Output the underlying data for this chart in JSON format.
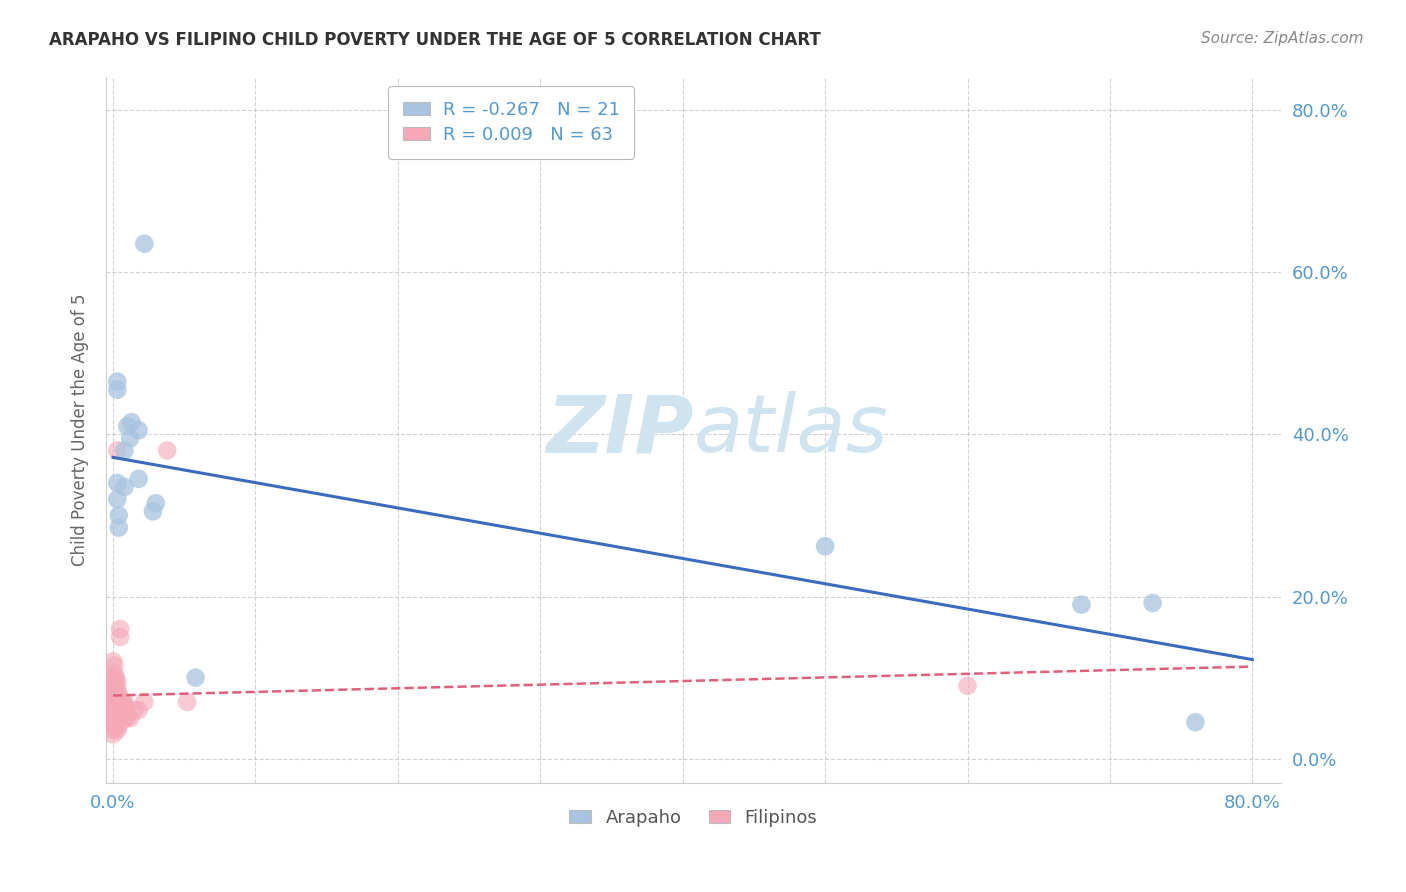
{
  "title": "ARAPAHO VS FILIPINO CHILD POVERTY UNDER THE AGE OF 5 CORRELATION CHART",
  "source": "Source: ZipAtlas.com",
  "ylabel": "Child Poverty Under the Age of 5",
  "ytick_values": [
    0.0,
    0.2,
    0.4,
    0.6,
    0.8
  ],
  "xtick_values": [
    0.0,
    0.1,
    0.2,
    0.3,
    0.4,
    0.5,
    0.6,
    0.7,
    0.8
  ],
  "xlim": [
    -0.005,
    0.82
  ],
  "ylim": [
    -0.03,
    0.84
  ],
  "legend_arapaho_R": "-0.267",
  "legend_arapaho_N": "21",
  "legend_filipino_R": "0.009",
  "legend_filipino_N": "63",
  "arapaho_color": "#A8C4E0",
  "filipino_color": "#F4A8B8",
  "arapaho_line_color": "#3A6BBF",
  "filipino_line_color": "#E0607A",
  "tick_color": "#5599CC",
  "title_color": "#333333",
  "source_color": "#888888",
  "watermark_color": "#D0E4F0",
  "background_color": "#FFFFFF",
  "arapaho_points": [
    [
      0.003,
      0.34
    ],
    [
      0.003,
      0.32
    ],
    [
      0.003,
      0.455
    ],
    [
      0.003,
      0.465
    ],
    [
      0.004,
      0.3
    ],
    [
      0.004,
      0.285
    ],
    [
      0.008,
      0.38
    ],
    [
      0.008,
      0.335
    ],
    [
      0.01,
      0.41
    ],
    [
      0.012,
      0.395
    ],
    [
      0.013,
      0.415
    ],
    [
      0.018,
      0.405
    ],
    [
      0.018,
      0.345
    ],
    [
      0.022,
      0.635
    ],
    [
      0.028,
      0.305
    ],
    [
      0.03,
      0.315
    ],
    [
      0.058,
      0.1
    ],
    [
      0.5,
      0.262
    ],
    [
      0.68,
      0.19
    ],
    [
      0.73,
      0.192
    ],
    [
      0.76,
      0.045
    ]
  ],
  "filipino_points": [
    [
      0.0,
      0.12
    ],
    [
      0.0,
      0.1
    ],
    [
      0.0,
      0.09
    ],
    [
      0.0,
      0.08
    ],
    [
      0.0,
      0.07
    ],
    [
      0.0,
      0.06
    ],
    [
      0.0,
      0.055
    ],
    [
      0.0,
      0.05
    ],
    [
      0.0,
      0.045
    ],
    [
      0.0,
      0.04
    ],
    [
      0.0,
      0.035
    ],
    [
      0.0,
      0.03
    ],
    [
      0.001,
      0.075
    ],
    [
      0.001,
      0.065
    ],
    [
      0.001,
      0.055
    ],
    [
      0.001,
      0.05
    ],
    [
      0.001,
      0.085
    ],
    [
      0.001,
      0.095
    ],
    [
      0.001,
      0.105
    ],
    [
      0.001,
      0.115
    ],
    [
      0.002,
      0.07
    ],
    [
      0.002,
      0.08
    ],
    [
      0.002,
      0.06
    ],
    [
      0.002,
      0.05
    ],
    [
      0.002,
      0.04
    ],
    [
      0.002,
      0.09
    ],
    [
      0.002,
      0.1
    ],
    [
      0.002,
      0.055
    ],
    [
      0.002,
      0.045
    ],
    [
      0.003,
      0.075
    ],
    [
      0.003,
      0.065
    ],
    [
      0.003,
      0.055
    ],
    [
      0.003,
      0.085
    ],
    [
      0.003,
      0.035
    ],
    [
      0.003,
      0.095
    ],
    [
      0.003,
      0.38
    ],
    [
      0.004,
      0.06
    ],
    [
      0.004,
      0.07
    ],
    [
      0.004,
      0.05
    ],
    [
      0.004,
      0.04
    ],
    [
      0.004,
      0.08
    ],
    [
      0.005,
      0.15
    ],
    [
      0.005,
      0.16
    ],
    [
      0.005,
      0.06
    ],
    [
      0.005,
      0.05
    ],
    [
      0.006,
      0.06
    ],
    [
      0.006,
      0.07
    ],
    [
      0.006,
      0.05
    ],
    [
      0.007,
      0.06
    ],
    [
      0.007,
      0.07
    ],
    [
      0.007,
      0.05
    ],
    [
      0.008,
      0.06
    ],
    [
      0.008,
      0.05
    ],
    [
      0.008,
      0.07
    ],
    [
      0.01,
      0.05
    ],
    [
      0.01,
      0.06
    ],
    [
      0.012,
      0.05
    ],
    [
      0.015,
      0.06
    ],
    [
      0.018,
      0.06
    ],
    [
      0.022,
      0.07
    ],
    [
      0.038,
      0.38
    ],
    [
      0.052,
      0.07
    ],
    [
      0.6,
      0.09
    ]
  ]
}
